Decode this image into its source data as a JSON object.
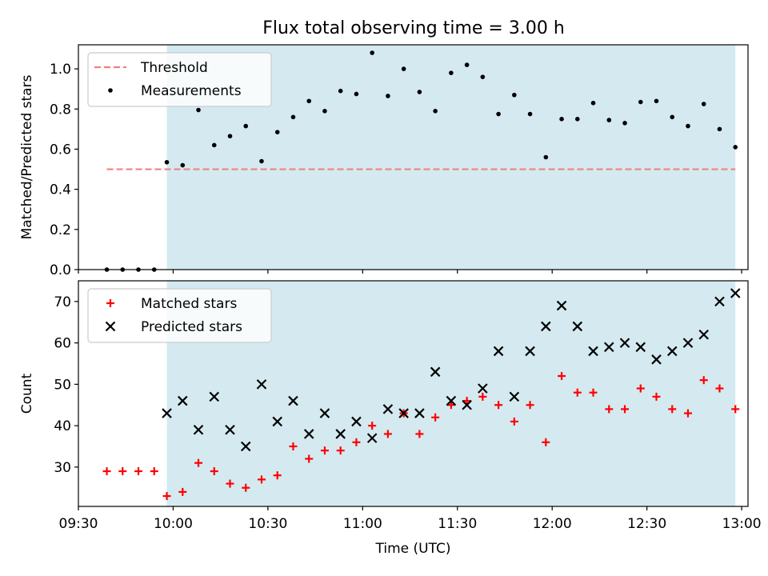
{
  "title": "Flux total observing time = 3.00 h",
  "colors": {
    "shade": "#d4eaf0",
    "threshold": "#f08080",
    "measurement": "#000000",
    "matched": "#ff0000",
    "predicted": "#000000"
  },
  "chart_data": [
    {
      "type": "scatter",
      "panel": "top",
      "ylabel": "Matched/Predicted stars",
      "ylim": [
        0,
        1.12
      ],
      "yticks": [
        0.0,
        0.2,
        0.4,
        0.6,
        0.8,
        1.0
      ],
      "ytick_labels": [
        "0.0",
        "0.2",
        "0.4",
        "0.6",
        "0.8",
        "1.0"
      ],
      "xlim": [
        "09:30",
        "13:02"
      ],
      "shaded_interval": [
        "09:58",
        "12:58"
      ],
      "legend": {
        "location": "upper-left",
        "entries": [
          "Threshold",
          "Measurements"
        ]
      },
      "threshold": {
        "name": "Threshold",
        "y": 0.5,
        "x_range": [
          "09:39",
          "12:58"
        ],
        "style": "dashed"
      },
      "series": [
        {
          "name": "Measurements",
          "marker": "dot",
          "x": [
            "09:39",
            "09:44",
            "09:49",
            "09:54",
            "09:58",
            "10:03",
            "10:08",
            "10:13",
            "10:18",
            "10:23",
            "10:28",
            "10:33",
            "10:38",
            "10:43",
            "10:48",
            "10:53",
            "10:58",
            "11:03",
            "11:08",
            "11:13",
            "11:18",
            "11:23",
            "11:28",
            "11:33",
            "11:38",
            "11:43",
            "11:48",
            "11:53",
            "11:58",
            "12:03",
            "12:08",
            "12:13",
            "12:18",
            "12:23",
            "12:28",
            "12:33",
            "12:38",
            "12:43",
            "12:48",
            "12:53",
            "12:58"
          ],
          "y": [
            0.0,
            0.0,
            0.0,
            0.0,
            0.535,
            0.52,
            0.795,
            0.62,
            0.665,
            0.715,
            0.54,
            0.685,
            0.76,
            0.84,
            0.79,
            0.89,
            0.875,
            1.08,
            0.865,
            1.0,
            0.885,
            0.79,
            0.98,
            1.02,
            0.96,
            0.775,
            0.87,
            0.775,
            0.56,
            0.75,
            0.75,
            0.83,
            0.745,
            0.73,
            0.835,
            0.84,
            0.76,
            0.715,
            0.825,
            0.7,
            0.61
          ]
        }
      ]
    },
    {
      "type": "scatter",
      "panel": "bottom",
      "xlabel": "Time (UTC)",
      "ylabel": "Count",
      "ylim": [
        20.5,
        75
      ],
      "yticks": [
        30,
        40,
        50,
        60,
        70
      ],
      "ytick_labels": [
        "30",
        "40",
        "50",
        "60",
        "70"
      ],
      "xlim": [
        "09:30",
        "13:02"
      ],
      "xticks": [
        "09:30",
        "10:00",
        "10:30",
        "11:00",
        "11:30",
        "12:00",
        "12:30",
        "13:00"
      ],
      "xtick_labels": [
        "09:30",
        "10:00",
        "10:30",
        "11:00",
        "11:30",
        "12:00",
        "12:30",
        "13:00"
      ],
      "shaded_interval": [
        "09:58",
        "12:58"
      ],
      "legend": {
        "location": "upper-left",
        "entries": [
          "Matched stars",
          "Predicted stars"
        ]
      },
      "series": [
        {
          "name": "Matched stars",
          "marker": "plus",
          "x": [
            "09:39",
            "09:44",
            "09:49",
            "09:54",
            "09:58",
            "10:03",
            "10:08",
            "10:13",
            "10:18",
            "10:23",
            "10:28",
            "10:33",
            "10:38",
            "10:43",
            "10:48",
            "10:53",
            "10:58",
            "11:03",
            "11:08",
            "11:13",
            "11:18",
            "11:23",
            "11:28",
            "11:33",
            "11:38",
            "11:43",
            "11:48",
            "11:53",
            "11:58",
            "12:03",
            "12:08",
            "12:13",
            "12:18",
            "12:23",
            "12:28",
            "12:33",
            "12:38",
            "12:43",
            "12:48",
            "12:53",
            "12:58"
          ],
          "y": [
            29,
            29,
            29,
            29,
            23,
            24,
            31,
            29,
            26,
            25,
            27,
            28,
            35,
            32,
            34,
            34,
            36,
            40,
            38,
            43,
            38,
            42,
            45,
            46,
            47,
            45,
            41,
            45,
            36,
            52,
            48,
            48,
            44,
            44,
            49,
            47,
            44,
            43,
            51,
            49,
            44
          ]
        },
        {
          "name": "Predicted stars",
          "marker": "x",
          "x": [
            "09:58",
            "10:03",
            "10:08",
            "10:13",
            "10:18",
            "10:23",
            "10:28",
            "10:33",
            "10:38",
            "10:43",
            "10:48",
            "10:53",
            "10:58",
            "11:03",
            "11:08",
            "11:13",
            "11:18",
            "11:23",
            "11:28",
            "11:33",
            "11:38",
            "11:43",
            "11:48",
            "11:53",
            "11:58",
            "12:03",
            "12:08",
            "12:13",
            "12:18",
            "12:23",
            "12:28",
            "12:33",
            "12:38",
            "12:43",
            "12:48",
            "12:53",
            "12:58"
          ],
          "y": [
            43,
            46,
            39,
            47,
            39,
            35,
            50,
            41,
            46,
            38,
            43,
            38,
            41,
            37,
            44,
            43,
            43,
            53,
            46,
            45,
            49,
            58,
            47,
            58,
            64,
            69,
            64,
            58,
            59,
            60,
            59,
            56,
            58,
            60,
            62,
            70,
            72
          ]
        }
      ]
    }
  ]
}
